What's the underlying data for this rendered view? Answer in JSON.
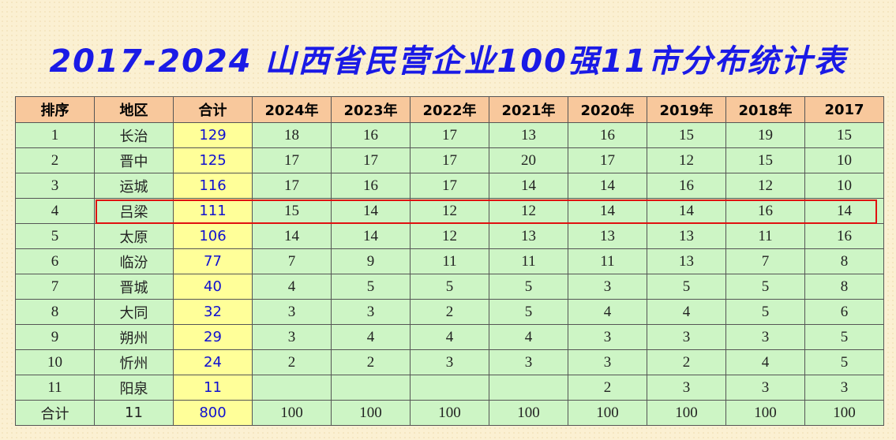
{
  "title": "2017-2024 山西省民营企业100强11市分布统计表",
  "table": {
    "header": [
      "排序",
      "地区",
      "合计",
      "2024年",
      "2023年",
      "2022年",
      "2021年",
      "2020年",
      "2019年",
      "2018年",
      "2017"
    ],
    "rows": [
      [
        1,
        "长治",
        129,
        18,
        16,
        17,
        13,
        16,
        15,
        19,
        15
      ],
      [
        2,
        "晋中",
        125,
        17,
        17,
        17,
        20,
        17,
        12,
        15,
        10
      ],
      [
        3,
        "运城",
        116,
        17,
        16,
        17,
        14,
        14,
        16,
        12,
        10
      ],
      [
        4,
        "吕梁",
        111,
        15,
        14,
        12,
        12,
        14,
        14,
        16,
        14
      ],
      [
        5,
        "太原",
        106,
        14,
        14,
        12,
        13,
        13,
        13,
        11,
        16
      ],
      [
        6,
        "临汾",
        77,
        7,
        9,
        11,
        11,
        11,
        13,
        7,
        8
      ],
      [
        7,
        "晋城",
        40,
        4,
        5,
        5,
        5,
        3,
        5,
        5,
        8
      ],
      [
        8,
        "大同",
        32,
        3,
        3,
        2,
        5,
        4,
        4,
        5,
        6
      ],
      [
        9,
        "朔州",
        29,
        3,
        4,
        4,
        4,
        3,
        3,
        3,
        5
      ],
      [
        10,
        "忻州",
        24,
        2,
        2,
        3,
        3,
        3,
        2,
        4,
        5
      ],
      [
        11,
        "阳泉",
        11,
        null,
        null,
        null,
        null,
        2,
        3,
        3,
        3
      ],
      [
        "合计",
        11,
        800,
        100,
        100,
        100,
        100,
        100,
        100,
        100,
        100
      ]
    ]
  }
}
